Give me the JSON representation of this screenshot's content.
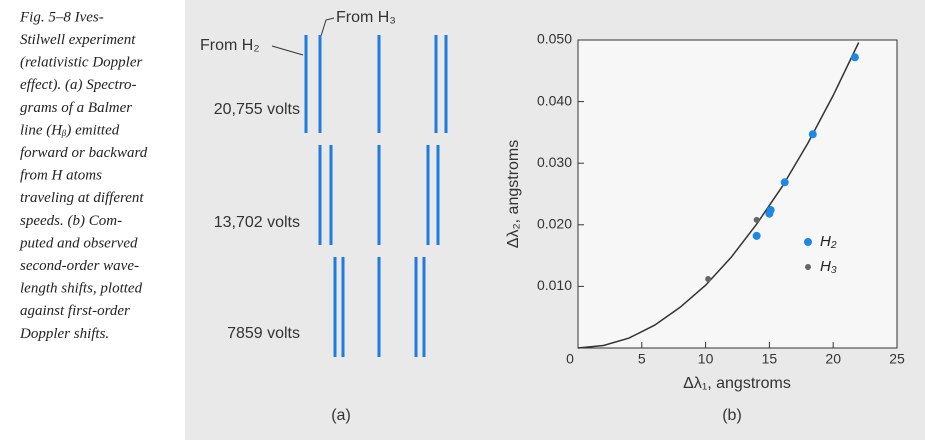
{
  "caption": {
    "lines": [
      "Fig. 5–8   Ives-",
      "Stilwell experiment",
      "(relativistic Doppler",
      "effect).  (a) Spectro-",
      "grams of a Balmer",
      "line (Hᵦ) emitted",
      "forward or backward",
      "from H atoms",
      "traveling at different",
      "speeds.  (b) Com-",
      "puted and observed",
      "second-order wave-",
      "length shifts, plotted",
      "against first-order",
      "Doppler shifts."
    ]
  },
  "diagram": {
    "label_h2": "From H₂",
    "label_h3": "From H₃",
    "rows": [
      "20,755 volts",
      "13,702 volts",
      "7859 volts"
    ],
    "caption": "(a)"
  },
  "chart_data": {
    "type": "scatter",
    "caption": "(b)",
    "x_label": "Δλ₁, angstroms",
    "y_label": "Δλ₂, angstroms",
    "xlim": [
      0,
      25
    ],
    "ylim": [
      0,
      0.05
    ],
    "xticks": [
      0,
      5,
      10,
      15,
      20,
      25
    ],
    "yticks": [
      {
        "value": 0.01,
        "label": "0.010"
      },
      {
        "value": 0.02,
        "label": "0.020"
      },
      {
        "value": 0.03,
        "label": "0.030"
      },
      {
        "value": 0.04,
        "label": "0.040"
      },
      {
        "value": 0.05,
        "label": "0.050"
      }
    ],
    "series": [
      {
        "name": "H₂",
        "color": "#1e88e5",
        "x": [
          21.7,
          18.4,
          16.2,
          15.1,
          15.0,
          14.0
        ],
        "values": [
          0.0472,
          0.0347,
          0.0269,
          0.0224,
          0.0218,
          0.0182
        ]
      },
      {
        "name": "H₃",
        "color": "#666666",
        "x": [
          10.2,
          14.0
        ],
        "values": [
          0.0112,
          0.0208
        ]
      }
    ],
    "curve": {
      "color": "#333333",
      "x": [
        0,
        2,
        4,
        6,
        8,
        10,
        12,
        14,
        16,
        18,
        20,
        22
      ],
      "values": [
        0,
        0.0004,
        0.0016,
        0.0037,
        0.0066,
        0.0102,
        0.0147,
        0.0201,
        0.0262,
        0.0332,
        0.041,
        0.0496
      ]
    },
    "legend": "lower right"
  }
}
